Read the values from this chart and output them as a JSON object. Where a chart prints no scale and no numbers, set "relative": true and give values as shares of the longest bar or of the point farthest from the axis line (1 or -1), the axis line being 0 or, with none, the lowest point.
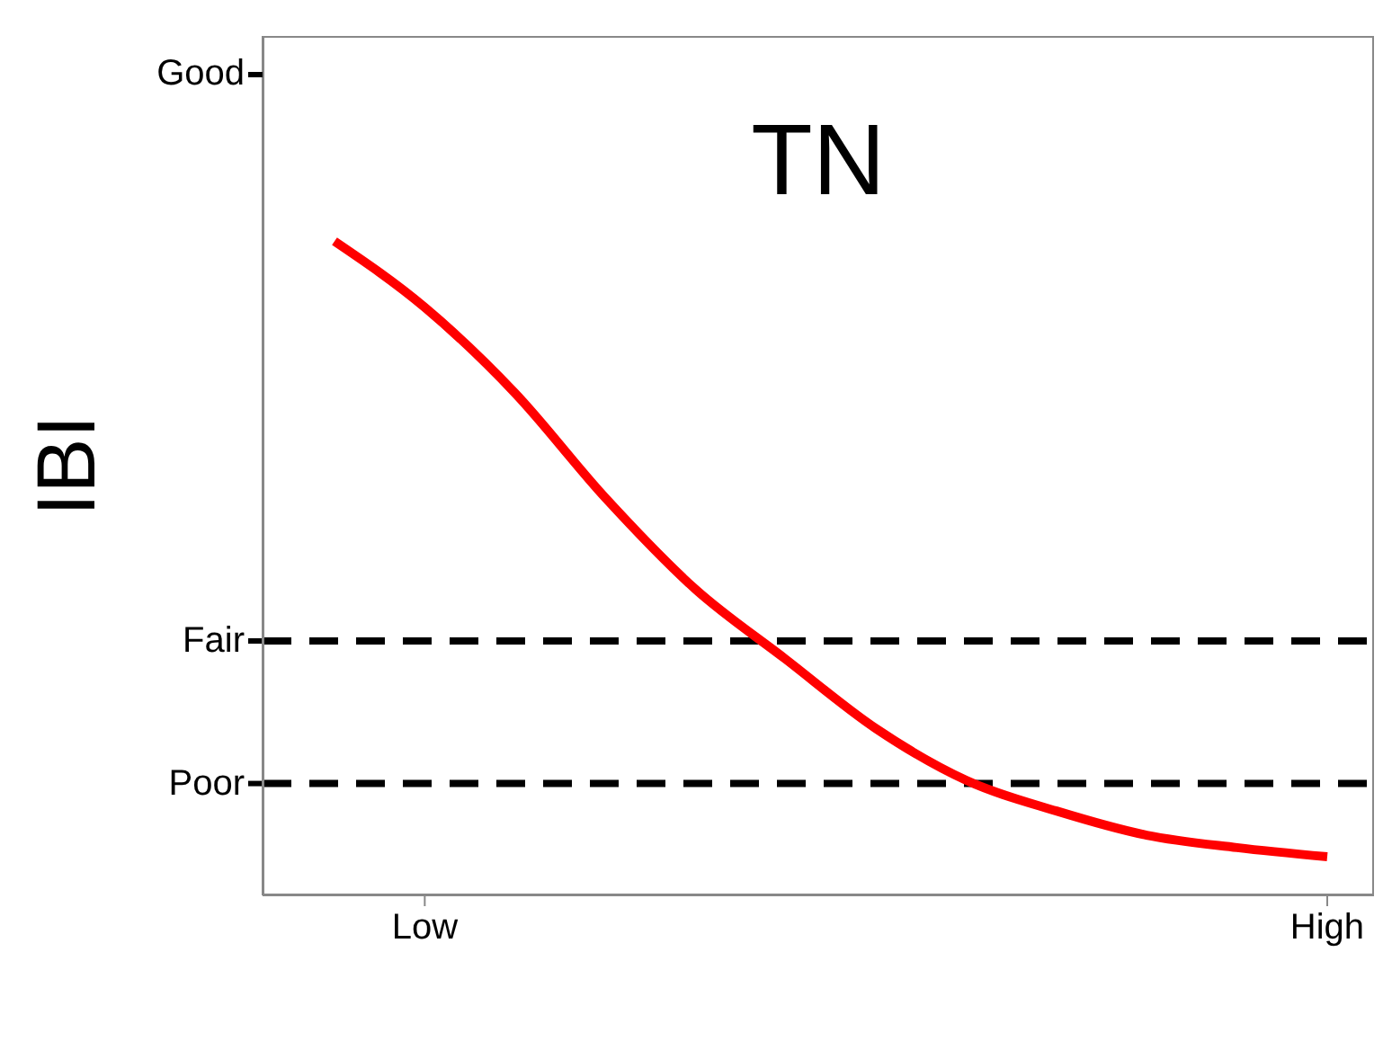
{
  "chart_data": {
    "type": "line",
    "title": "TN",
    "ylabel": "IBI",
    "relative": true,
    "categories": [
      null,
      "Low",
      null,
      null,
      null,
      null,
      null,
      null,
      null,
      null,
      null,
      "High"
    ],
    "series": [
      {
        "color": "#ff0000",
        "values": [
          1,
          0.899,
          0.768,
          0.608,
          0.468,
          0.361,
          0.255,
          0.176,
          0.129,
          0.092,
          0.073,
          0.059
        ]
      }
    ],
    "ref_lines": [
      {
        "axis": "y",
        "value": 0.389,
        "label": "Fair",
        "color": "#000000",
        "line_style": "dashed"
      },
      {
        "axis": "y",
        "value": 0.171,
        "label": "Poor",
        "color": "#000000",
        "line_style": "dashed"
      }
    ],
    "annotations": [
      "Good"
    ],
    "marker": "none",
    "line_style": "solid"
  }
}
